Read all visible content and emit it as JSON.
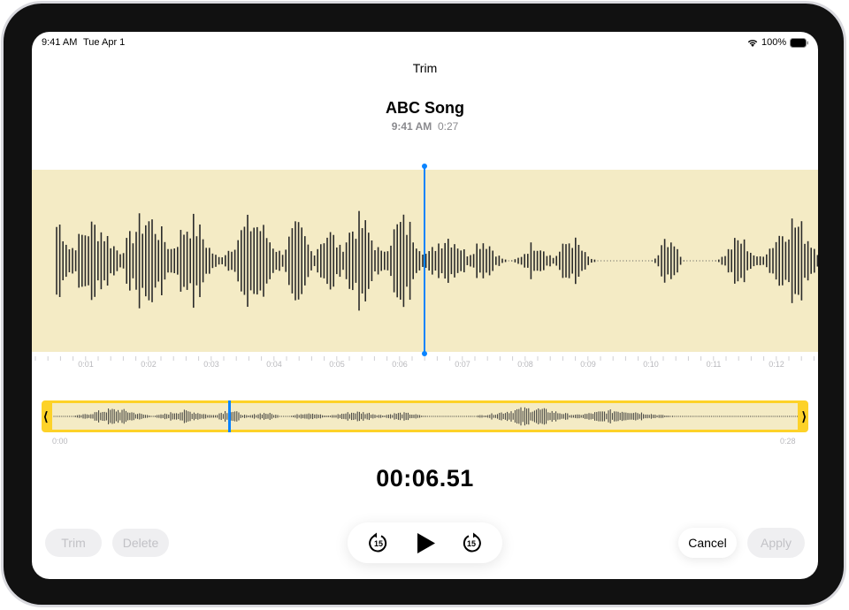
{
  "status_bar": {
    "time": "9:41 AM",
    "date": "Tue Apr 1",
    "battery": "100%",
    "wifi_icon": "wifi-icon",
    "battery_icon": "battery-icon"
  },
  "header": {
    "title": "Trim"
  },
  "recording": {
    "name": "ABC Song",
    "time": "9:41 AM",
    "duration": "0:27"
  },
  "waveform": {
    "tick_labels": [
      "0:01",
      "0:02",
      "0:03",
      "0:04",
      "0:05",
      "0:06",
      "0:07",
      "0:08",
      "0:09",
      "0:10",
      "0:11",
      "0:12"
    ],
    "background": "#f4ebc5",
    "playhead_color": "#0a84ff"
  },
  "trimmer": {
    "start_label": "0:00",
    "end_label": "0:28",
    "handle_color": "#fdd228"
  },
  "playback": {
    "current_time": "00:06.51",
    "skip_back_label": "15",
    "skip_forward_label": "15"
  },
  "buttons": {
    "trim": "Trim",
    "delete": "Delete",
    "cancel": "Cancel",
    "apply": "Apply"
  }
}
